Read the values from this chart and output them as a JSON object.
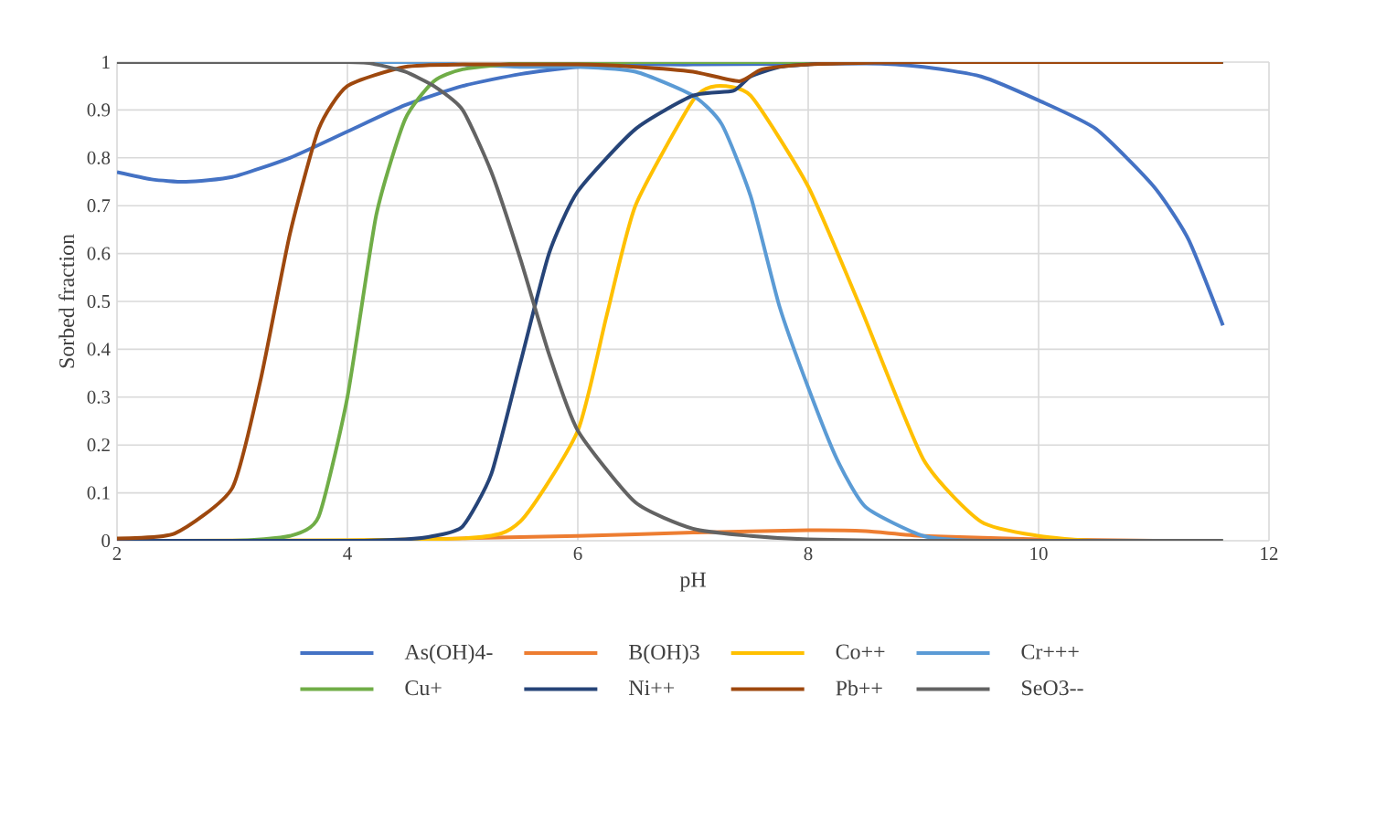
{
  "chart_data": {
    "type": "line",
    "xlabel": "pH",
    "ylabel": "Sorbed fraction",
    "xlim": [
      2,
      12
    ],
    "xticks": [
      2,
      4,
      6,
      8,
      10,
      12
    ],
    "ylim": [
      0,
      1
    ],
    "yticks": [
      0,
      0.1,
      0.2,
      0.3,
      0.4,
      0.5,
      0.6,
      0.7,
      0.8,
      0.9,
      1
    ],
    "grid": true,
    "legend": "bottom",
    "marker": "none",
    "line_style": "solid",
    "series": [
      {
        "name": "As(OH)4-",
        "color": "#4472c4",
        "x": [
          2,
          2.3,
          2.6,
          3,
          3.5,
          4,
          4.5,
          5,
          5.5,
          6,
          6.5,
          7,
          8.5,
          9,
          9.5,
          10,
          10.5,
          11,
          11.3,
          11.6
        ],
        "values": [
          0.77,
          0.755,
          0.75,
          0.76,
          0.8,
          0.855,
          0.91,
          0.95,
          0.975,
          0.99,
          0.995,
          0.995,
          0.997,
          0.99,
          0.97,
          0.92,
          0.86,
          0.74,
          0.63,
          0.45
        ]
      },
      {
        "name": "B(OH)3",
        "color": "#ed7d31",
        "x": [
          2,
          4,
          5,
          6,
          7,
          8,
          8.5,
          9,
          10,
          11,
          11.6
        ],
        "values": [
          0,
          0,
          0.005,
          0.01,
          0.017,
          0.022,
          0.02,
          0.01,
          0.003,
          0,
          0
        ]
      },
      {
        "name": "Co++",
        "color": "#ffc000",
        "x": [
          2,
          5,
          5.5,
          6,
          6.25,
          6.5,
          7,
          7.2,
          7.5,
          8,
          8.45,
          9,
          9.5,
          10,
          10.5,
          11.6
        ],
        "values": [
          0,
          0.005,
          0.04,
          0.23,
          0.47,
          0.7,
          0.92,
          0.95,
          0.93,
          0.74,
          0.49,
          0.17,
          0.04,
          0.01,
          0,
          0
        ]
      },
      {
        "name": "Cr+++",
        "color": "#5b9bd5",
        "x": [
          2,
          4.5,
          5,
          5.5,
          6,
          6.5,
          7,
          7.25,
          7.5,
          7.75,
          8,
          8.25,
          8.5,
          9,
          9.5,
          11.6
        ],
        "values": [
          1,
          1,
          0.995,
          0.99,
          0.99,
          0.98,
          0.93,
          0.87,
          0.72,
          0.49,
          0.32,
          0.17,
          0.07,
          0.01,
          0,
          0
        ]
      },
      {
        "name": "Cu+",
        "color": "#70ad47",
        "x": [
          2,
          3,
          3.5,
          3.75,
          4,
          4.25,
          4.5,
          4.75,
          5,
          5.5,
          6,
          11.6
        ],
        "values": [
          0,
          0,
          0.01,
          0.05,
          0.3,
          0.68,
          0.88,
          0.96,
          0.985,
          0.998,
          1,
          1
        ]
      },
      {
        "name": "Ni++",
        "color": "#264478",
        "x": [
          2,
          4,
          4.5,
          4.75,
          5,
          5.25,
          5.5,
          5.75,
          6,
          6.5,
          7,
          7.35,
          7.5,
          7.75,
          8,
          8.5,
          11.6
        ],
        "values": [
          0,
          0,
          0.003,
          0.01,
          0.03,
          0.14,
          0.37,
          0.6,
          0.73,
          0.86,
          0.93,
          0.94,
          0.97,
          0.99,
          0.995,
          1,
          1
        ]
      },
      {
        "name": "Pb++",
        "color": "#9e480e",
        "x": [
          2,
          2.5,
          3,
          3.25,
          3.5,
          3.75,
          4,
          4.5,
          5,
          6,
          6.5,
          7,
          7.4,
          7.6,
          8,
          9,
          11.6
        ],
        "values": [
          0.005,
          0.015,
          0.11,
          0.34,
          0.64,
          0.86,
          0.95,
          0.99,
          0.995,
          0.995,
          0.99,
          0.98,
          0.96,
          0.985,
          0.995,
          1,
          1
        ]
      },
      {
        "name": "SeO3--",
        "color": "#636363",
        "x": [
          2,
          4,
          4.25,
          4.5,
          4.75,
          5,
          5.25,
          5.5,
          5.75,
          6,
          6.5,
          7,
          7.5,
          8,
          9,
          11.6
        ],
        "values": [
          1,
          1,
          0.995,
          0.98,
          0.95,
          0.9,
          0.77,
          0.59,
          0.39,
          0.23,
          0.08,
          0.025,
          0.01,
          0.003,
          0,
          0
        ]
      }
    ]
  }
}
